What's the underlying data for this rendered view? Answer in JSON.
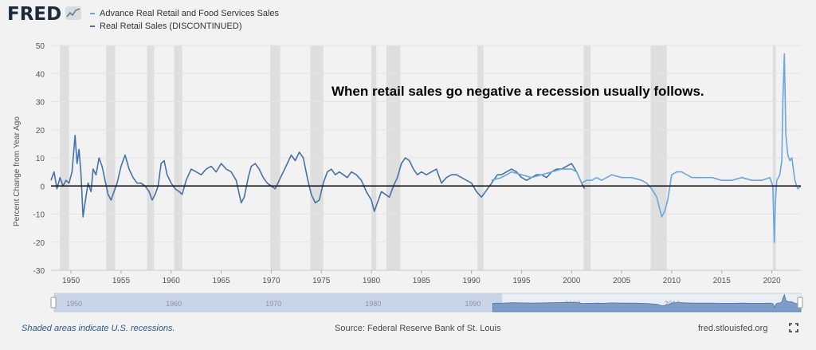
{
  "app": {
    "logo": "FRED"
  },
  "legend": [
    {
      "label": "Advance Real Retail and Food Services Sales",
      "color": "#6aa6e0"
    },
    {
      "label": "Real Retail Sales (DISCONTINUED)",
      "color": "#4572a7"
    }
  ],
  "footer": {
    "note": "Shaded areas indicate U.S. recessions.",
    "source": "Source: Federal Reserve Bank of St. Louis",
    "site": "fred.stlouisfed.org"
  },
  "chart_data": {
    "type": "line",
    "annotation": "When retail sales go negative a recession usually follows.",
    "ylabel": "Percent Change from Year Ago",
    "ylim": [
      -30,
      50
    ],
    "xlim": [
      1948,
      2022.9
    ],
    "y_ticks": [
      -30,
      -20,
      -10,
      0,
      10,
      20,
      30,
      40,
      50
    ],
    "x_ticks": [
      1950,
      1955,
      1960,
      1965,
      1970,
      1975,
      1980,
      1985,
      1990,
      1995,
      2000,
      2005,
      2010,
      2015,
      2020
    ],
    "navigator_ticks": [
      1950,
      1960,
      1970,
      1980,
      1990,
      2000,
      2010
    ],
    "grid": true,
    "zero_line": true,
    "recessions": [
      [
        1948.9,
        1949.8
      ],
      [
        1953.5,
        1954.4
      ],
      [
        1957.6,
        1958.3
      ],
      [
        1960.3,
        1961.1
      ],
      [
        1969.9,
        1970.9
      ],
      [
        1973.9,
        1975.2
      ],
      [
        1980.0,
        1980.5
      ],
      [
        1981.5,
        1982.9
      ],
      [
        1990.6,
        1991.2
      ],
      [
        2001.2,
        2001.9
      ],
      [
        2007.9,
        2009.5
      ],
      [
        2020.1,
        2020.4
      ]
    ],
    "series": [
      {
        "name": "Real Retail Sales (DISCONTINUED)",
        "color": "#4572a7",
        "x": [
          1948.0,
          1948.3,
          1948.6,
          1948.9,
          1949.2,
          1949.5,
          1949.8,
          1950.1,
          1950.4,
          1950.6,
          1950.8,
          1951.0,
          1951.2,
          1951.4,
          1951.7,
          1952.0,
          1952.2,
          1952.5,
          1952.8,
          1953.1,
          1953.4,
          1953.7,
          1954.0,
          1954.3,
          1954.6,
          1955.0,
          1955.4,
          1955.8,
          1956.2,
          1956.6,
          1957.0,
          1957.4,
          1957.8,
          1958.1,
          1958.4,
          1958.7,
          1959.0,
          1959.3,
          1959.6,
          1960.0,
          1960.4,
          1960.8,
          1961.1,
          1961.5,
          1962.0,
          1962.5,
          1963.0,
          1963.5,
          1964.0,
          1964.5,
          1965.0,
          1965.5,
          1966.0,
          1966.5,
          1967.0,
          1967.3,
          1967.7,
          1968.0,
          1968.4,
          1968.8,
          1969.2,
          1969.6,
          1970.0,
          1970.4,
          1970.8,
          1971.2,
          1971.6,
          1972.0,
          1972.4,
          1972.8,
          1973.2,
          1973.6,
          1974.0,
          1974.4,
          1974.8,
          1975.2,
          1975.6,
          1976.0,
          1976.4,
          1976.8,
          1977.2,
          1977.6,
          1978.0,
          1978.5,
          1979.0,
          1979.5,
          1980.0,
          1980.3,
          1980.6,
          1981.0,
          1981.4,
          1981.8,
          1982.2,
          1982.6,
          1983.0,
          1983.4,
          1983.8,
          1984.2,
          1984.6,
          1985.0,
          1985.5,
          1986.0,
          1986.5,
          1987.0,
          1987.5,
          1988.0,
          1988.5,
          1989.0,
          1989.5,
          1990.0,
          1990.5,
          1991.0,
          1991.4,
          1991.8,
          1992.2,
          1992.6,
          1993.0,
          1993.5,
          1994.0,
          1994.5,
          1995.0,
          1995.5,
          1996.0,
          1996.5,
          1997.0,
          1997.5,
          1998.0,
          1998.5,
          1999.0,
          1999.5,
          2000.0,
          2000.5,
          2001.0,
          2001.3
        ],
        "values": [
          2,
          5,
          -1,
          3,
          0,
          2,
          1,
          5,
          18,
          8,
          13,
          4,
          -11,
          -6,
          1,
          -2,
          6,
          4,
          10,
          7,
          2,
          -3,
          -5,
          -2,
          1,
          7,
          11,
          6,
          3,
          1,
          1,
          0,
          -2,
          -5,
          -3,
          0,
          8,
          9,
          4,
          1,
          -1,
          -2,
          -3,
          2,
          6,
          5,
          4,
          6,
          7,
          5,
          8,
          6,
          5,
          2,
          -6,
          -4,
          3,
          7,
          8,
          6,
          3,
          1,
          0,
          -1,
          2,
          5,
          8,
          11,
          9,
          12,
          10,
          3,
          -3,
          -6,
          -5,
          1,
          5,
          6,
          4,
          5,
          4,
          3,
          5,
          4,
          2,
          -2,
          -5,
          -9,
          -6,
          -2,
          -3,
          -4,
          0,
          3,
          8,
          10,
          9,
          6,
          4,
          5,
          4,
          5,
          6,
          1,
          3,
          4,
          4,
          3,
          2,
          1,
          -2,
          -4,
          -2,
          0,
          2,
          4,
          4,
          5,
          6,
          5,
          3,
          2,
          3,
          4,
          4,
          3,
          5,
          6,
          6,
          7,
          8,
          5,
          1,
          -1
        ]
      },
      {
        "name": "Advance Real Retail and Food Services Sales",
        "color": "#6aa6e0",
        "x": [
          1992.0,
          1993.0,
          1994.0,
          1995.0,
          1996.0,
          1997.0,
          1998.0,
          1999.0,
          2000.0,
          2000.5,
          2001.0,
          2001.5,
          2002.0,
          2002.5,
          2003.0,
          2004.0,
          2005.0,
          2006.0,
          2007.0,
          2007.5,
          2008.0,
          2008.5,
          2009.0,
          2009.3,
          2009.6,
          2010.0,
          2010.5,
          2011.0,
          2012.0,
          2013.0,
          2014.0,
          2015.0,
          2016.0,
          2017.0,
          2018.0,
          2019.0,
          2019.8,
          2020.1,
          2020.25,
          2020.35,
          2020.5,
          2020.8,
          2021.0,
          2021.1,
          2021.25,
          2021.4,
          2021.6,
          2021.8,
          2022.0,
          2022.3,
          2022.6,
          2022.9
        ],
        "values": [
          2,
          3,
          5,
          4,
          3,
          4,
          5,
          6,
          6,
          5,
          1,
          2,
          2,
          3,
          2,
          4,
          3,
          3,
          2,
          1,
          -1,
          -4,
          -11,
          -9,
          -5,
          4,
          5,
          5,
          3,
          3,
          3,
          2,
          2,
          3,
          2,
          2,
          3,
          0,
          -20,
          -6,
          2,
          4,
          9,
          30,
          47,
          18,
          11,
          9,
          10,
          2,
          -1,
          0
        ]
      }
    ]
  }
}
